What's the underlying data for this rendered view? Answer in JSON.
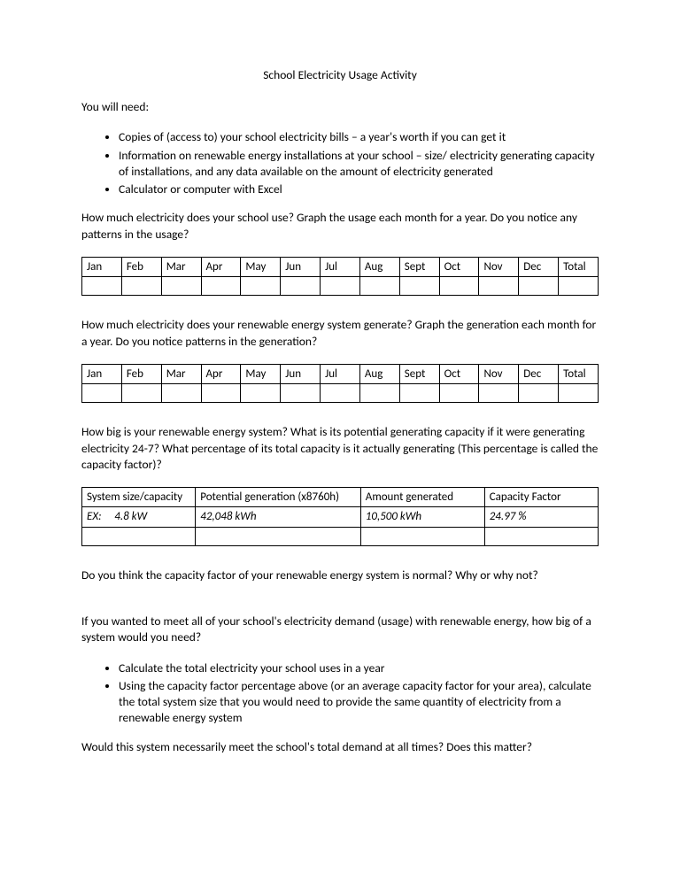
{
  "title": "School Electricity Usage Activity",
  "intro": "You will need:",
  "bullets1": [
    "Copies of (access to) your school electricity bills – a year's worth if you can get it",
    "Information on renewable energy installations at your school – size/ electricity generating capacity of installations, and any data available on the amount of electricity generated",
    "Calculator or computer with Excel"
  ],
  "q1": "How much electricity does your school use? Graph the usage each month for a year. Do you notice any patterns in the usage?",
  "months": [
    "Jan",
    "Feb",
    "Mar",
    "Apr",
    "May",
    "Jun",
    "Jul",
    "Aug",
    "Sept",
    "Oct",
    "Nov",
    "Dec",
    "Total"
  ],
  "q2": "How much electricity does your renewable energy system generate? Graph the generation each month for a year. Do you notice patterns in the generation?",
  "q3": "How big is your renewable energy system? What is its potential generating capacity if it were generating electricity 24-7? What percentage of its total capacity is it actually generating (This percentage is called the capacity factor)?",
  "capacity": {
    "headers": [
      "System size/capacity",
      "Potential generation (x8760h)",
      "Amount generated",
      "Capacity Factor"
    ],
    "example": {
      "label": "EX:",
      "size": "4.8   kW",
      "potential": "42,048   kWh",
      "amount": "10,500   kWh",
      "factor": "24.97   %"
    }
  },
  "q4": "Do you think the capacity factor of your renewable energy system is normal? Why or why not?",
  "q5": "If you wanted to meet all of your school's electricity demand (usage) with renewable energy, how big of a system would you need?",
  "bullets2": [
    "Calculate the total electricity your school uses in a year",
    "Using the capacity factor percentage above (or an average capacity factor for your area), calculate the total system size that you would need to provide the same quantity of electricity from a renewable energy system"
  ],
  "q6": "Would this system necessarily meet the school's total demand at all times? Does this matter?"
}
